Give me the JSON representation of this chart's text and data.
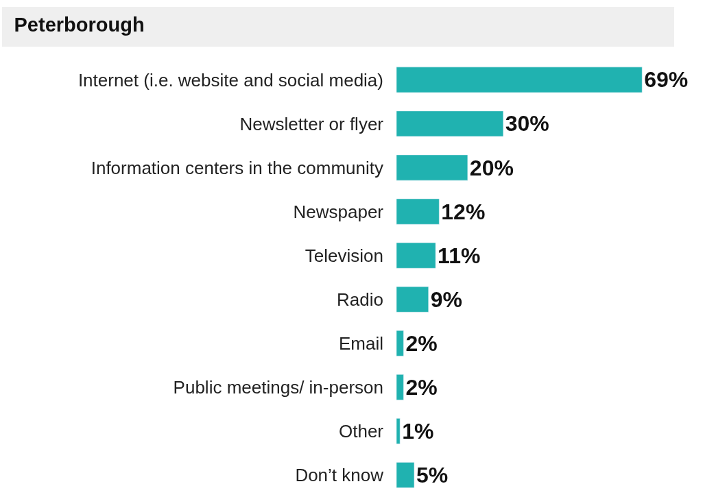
{
  "chart_data": {
    "type": "bar",
    "orientation": "horizontal",
    "title": "Peterborough",
    "categories": [
      "Internet (i.e. website and social media)",
      "Newsletter or flyer",
      "Information centers in the community",
      "Newspaper",
      "Television",
      "Radio",
      "Email",
      "Public meetings/ in-person",
      "Other",
      "Don’t know"
    ],
    "values": [
      69,
      30,
      20,
      12,
      11,
      9,
      2,
      2,
      1,
      5
    ],
    "value_labels": [
      "69%",
      "30%",
      "20%",
      "12%",
      "11%",
      "9%",
      "2%",
      "2%",
      "1%",
      "5%"
    ],
    "color": "#20b2b0",
    "tick_labels": "y"
  }
}
